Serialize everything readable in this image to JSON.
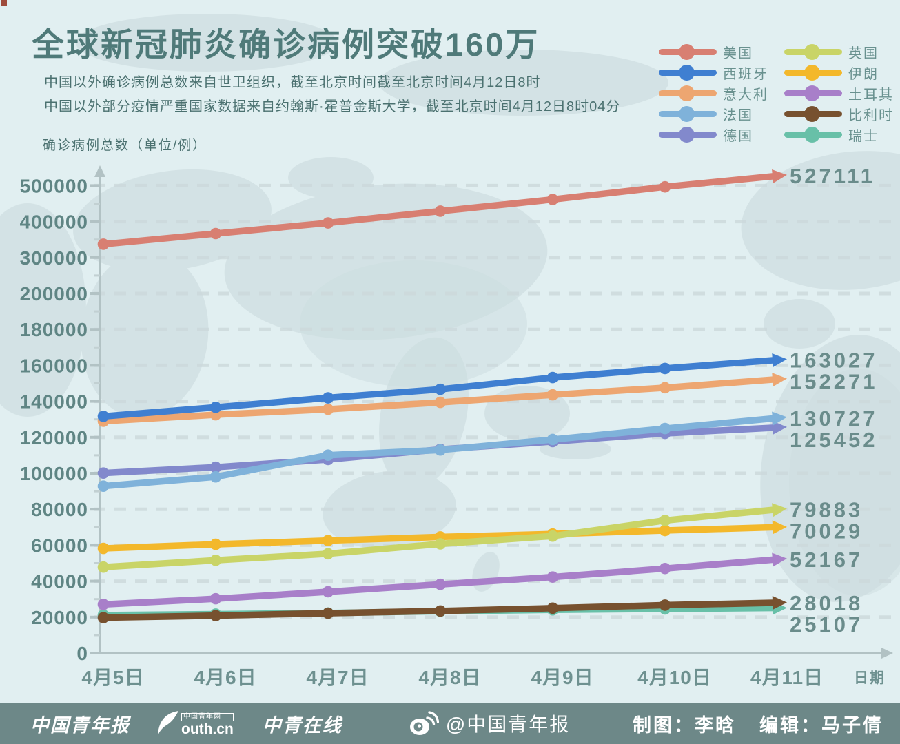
{
  "page": {
    "background": "#e1eff1",
    "footer_background": "#6d8888",
    "title_color": "#4f7a79",
    "text_color": "#4b7170"
  },
  "header": {
    "title": "全球新冠肺炎确诊病例突破160万",
    "subtitle_lines": [
      "中国以外确诊病例总数来自世卫组织，截至北京时间截至北京时间4月12日8时",
      "中国以外部分疫情严重国家数据来自约翰斯·霍普金斯大学，截至北京时间4月12日8时04分"
    ],
    "axis_title": "确诊病例总数（单位/例）"
  },
  "chart_data": {
    "type": "line",
    "title": "全球新冠肺炎确诊病例突破160万",
    "xlabel": "日期",
    "ylabel": "确诊病例总数（单位/例）",
    "categories": [
      "4月5日",
      "4月6日",
      "4月7日",
      "4月8日",
      "4月9日",
      "4月10日",
      "4月11日"
    ],
    "y_ticks": [
      0,
      20000,
      40000,
      60000,
      80000,
      100000,
      120000,
      140000,
      160000,
      180000,
      200000,
      300000,
      400000,
      500000
    ],
    "y_axis_note": "broken scale: 20000 per gridline up to 200000, then 100000 per gridline to 500000",
    "grid": true,
    "legend_position": "top-right",
    "series": [
      {
        "key": "usa",
        "name": "美国",
        "color": "#d87f72",
        "values": [
          337072,
          366667,
          396223,
          429052,
          461437,
          496535,
          527111
        ],
        "end_label": "527111"
      },
      {
        "key": "spain",
        "name": "西班牙",
        "color": "#3f7fd1",
        "values": [
          131646,
          136675,
          141942,
          146690,
          153222,
          158273,
          163027
        ],
        "end_label": "163027"
      },
      {
        "key": "italy",
        "name": "意大利",
        "color": "#eda671",
        "values": [
          128948,
          132547,
          135586,
          139422,
          143626,
          147577,
          152271
        ],
        "end_label": "152271"
      },
      {
        "key": "france",
        "name": "法国",
        "color": "#7fb2da",
        "values": [
          92839,
          98010,
          110065,
          112950,
          118781,
          124869,
          130727
        ],
        "end_label": "130727"
      },
      {
        "key": "germany",
        "name": "德国",
        "color": "#8289cc",
        "values": [
          100123,
          103374,
          107663,
          113296,
          117655,
          122171,
          125452
        ],
        "end_label": "125452"
      },
      {
        "key": "uk",
        "name": "英国",
        "color": "#c9d467",
        "values": [
          47806,
          51608,
          55242,
          60733,
          65077,
          73758,
          79883
        ],
        "end_label": "79883"
      },
      {
        "key": "iran",
        "name": "伊朗",
        "color": "#f3b82b",
        "values": [
          58226,
          60500,
          62589,
          64586,
          66220,
          68192,
          70029
        ],
        "end_label": "70029"
      },
      {
        "key": "turkey",
        "name": "土耳其",
        "color": "#a87fc9",
        "values": [
          27069,
          30217,
          34109,
          38226,
          42282,
          47029,
          52167
        ],
        "end_label": "52167"
      },
      {
        "key": "belgium",
        "name": "比利时",
        "color": "#77512f",
        "values": [
          19691,
          20814,
          22194,
          23403,
          24983,
          26667,
          28018
        ],
        "end_label": "28018"
      },
      {
        "key": "switzerland",
        "name": "瑞士",
        "color": "#68c0a8",
        "values": [
          21100,
          21657,
          22253,
          23280,
          24051,
          24551,
          25107
        ],
        "end_label": "25107"
      }
    ]
  },
  "footer": {
    "brand_newspaper": "中国青年报",
    "brand_youth_site_cn": "中国青年网",
    "brand_youth_site_en": "outh.cn",
    "brand_online": "中青在线",
    "weibo_handle": "@中国青年报",
    "credit_maker": "制图：李晗",
    "credit_editor": "编辑：马子倩"
  }
}
